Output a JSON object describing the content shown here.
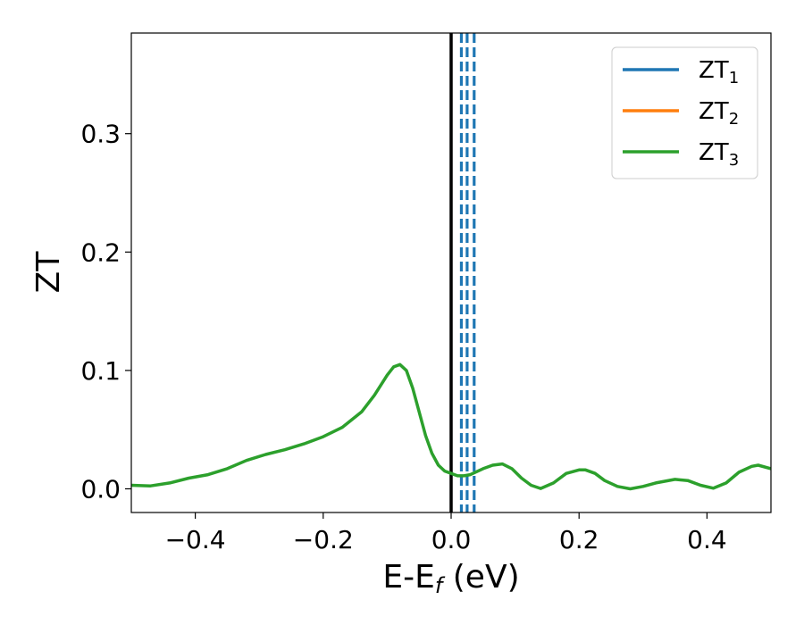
{
  "chart_data": {
    "type": "line",
    "xlabel": "E-E",
    "xlabel_sub": "f",
    "xlabel_unit": " (eV)",
    "ylabel": "ZT",
    "xlim": [
      -0.5,
      0.5
    ],
    "ylim": [
      -0.02,
      0.385
    ],
    "grid": false,
    "legend_position": "top-right",
    "xticks": [
      -0.4,
      -0.2,
      0.0,
      0.2,
      0.4
    ],
    "xtick_labels": [
      "−0.4",
      "−0.2",
      "0.0",
      "0.2",
      "0.4"
    ],
    "yticks": [
      0.0,
      0.1,
      0.2,
      0.3
    ],
    "ytick_labels": [
      "0.0",
      "0.1",
      "0.2",
      "0.3"
    ],
    "colors": {
      "zt1": "#1f77b4",
      "zt2": "#ff7f0e",
      "zt3": "#2ca02c",
      "fermi": "#000000"
    },
    "series": [
      {
        "name": "ZT",
        "sub": "1",
        "color": "#1f77b4"
      },
      {
        "name": "ZT",
        "sub": "2",
        "color": "#ff7f0e"
      },
      {
        "name": "ZT",
        "sub": "3",
        "color": "#2ca02c",
        "x": [
          -0.5,
          -0.47,
          -0.44,
          -0.41,
          -0.38,
          -0.35,
          -0.32,
          -0.29,
          -0.26,
          -0.23,
          -0.2,
          -0.17,
          -0.14,
          -0.12,
          -0.1,
          -0.09,
          -0.08,
          -0.07,
          -0.06,
          -0.05,
          -0.04,
          -0.03,
          -0.02,
          -0.01,
          0.0,
          0.01,
          0.02,
          0.03,
          0.05,
          0.065,
          0.08,
          0.095,
          0.11,
          0.125,
          0.14,
          0.16,
          0.18,
          0.2,
          0.21,
          0.225,
          0.24,
          0.26,
          0.28,
          0.3,
          0.32,
          0.35,
          0.37,
          0.39,
          0.41,
          0.43,
          0.45,
          0.47,
          0.48,
          0.5
        ],
        "y": [
          0.003,
          0.0025,
          0.005,
          0.009,
          0.012,
          0.017,
          0.024,
          0.029,
          0.033,
          0.038,
          0.044,
          0.052,
          0.065,
          0.079,
          0.096,
          0.103,
          0.105,
          0.1,
          0.085,
          0.065,
          0.045,
          0.03,
          0.02,
          0.015,
          0.013,
          0.011,
          0.011,
          0.012,
          0.017,
          0.02,
          0.021,
          0.017,
          0.009,
          0.003,
          0.0003,
          0.005,
          0.013,
          0.016,
          0.016,
          0.013,
          0.007,
          0.002,
          0.0,
          0.002,
          0.005,
          0.008,
          0.007,
          0.003,
          0.0005,
          0.005,
          0.014,
          0.019,
          0.02,
          0.017
        ]
      }
    ],
    "vlines": [
      {
        "x": 0.0,
        "style": "solid",
        "color": "#000000"
      },
      {
        "x": 0.016,
        "style": "dashed",
        "color": "#1f77b4"
      },
      {
        "x": 0.025,
        "style": "dashed",
        "color": "#1f77b4"
      },
      {
        "x": 0.036,
        "style": "dashed",
        "color": "#1f77b4"
      }
    ]
  }
}
